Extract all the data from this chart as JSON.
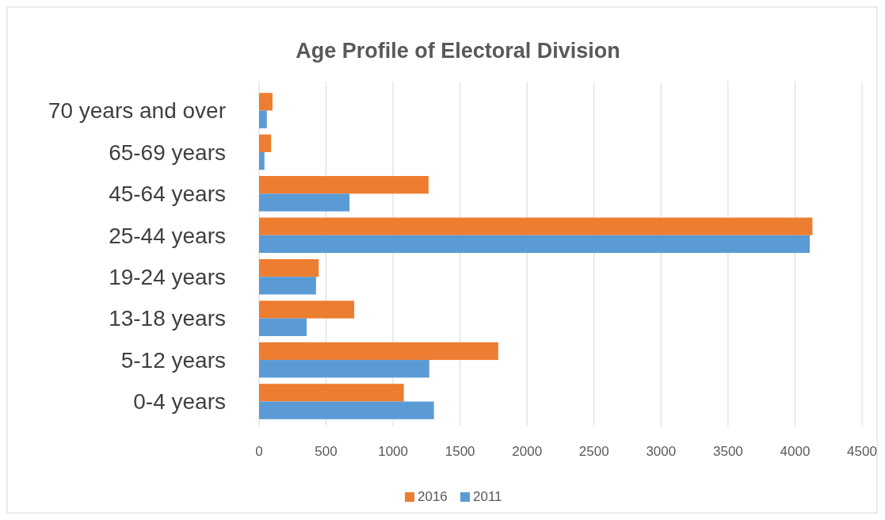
{
  "chart_data": {
    "type": "bar",
    "orientation": "horizontal",
    "title": "Age Profile of Electoral Division",
    "categories": [
      "70 years and over",
      "65-69 years",
      "45-64 years",
      "25-44 years",
      "19-24 years",
      "13-18 years",
      "5-12 years",
      "0-4 years"
    ],
    "series": [
      {
        "name": "2016",
        "color": "#ed7d31",
        "values": [
          100,
          90,
          1265,
          4130,
          445,
          710,
          1785,
          1080
        ]
      },
      {
        "name": "2011",
        "color": "#5b9bd5",
        "values": [
          58,
          40,
          675,
          4110,
          425,
          355,
          1270,
          1305
        ]
      }
    ],
    "xlim": [
      0,
      4500
    ],
    "xticks": [
      0,
      500,
      1000,
      1500,
      2000,
      2500,
      3000,
      3500,
      4000,
      4500
    ],
    "grid": "x",
    "legend": "bottom"
  }
}
